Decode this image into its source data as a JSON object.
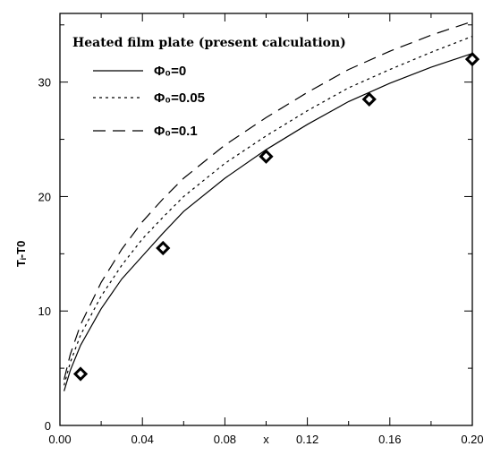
{
  "chart_data": {
    "type": "line",
    "title": "",
    "xlabel": "x",
    "ylabel": "Tᵢ-T0",
    "xlim": [
      0.0,
      0.2
    ],
    "ylim": [
      0,
      36
    ],
    "xticks": [
      "0.00",
      "0.04",
      "0.08",
      "0.12",
      "0.16",
      "0.20"
    ],
    "xtick_values": [
      0.0,
      0.04,
      0.08,
      0.12,
      0.16,
      0.2
    ],
    "yticks": [
      "0",
      "10",
      "20",
      "30"
    ],
    "ytick_values": [
      0,
      10,
      20,
      30
    ],
    "grid": false,
    "legend_title": "Heated film plate (present calculation)",
    "legend_position": "top-left",
    "series": [
      {
        "name": "Φ₀=0",
        "style": "solid",
        "x": [
          0.002,
          0.005,
          0.01,
          0.02,
          0.03,
          0.04,
          0.05,
          0.06,
          0.08,
          0.1,
          0.12,
          0.14,
          0.16,
          0.18,
          0.2
        ],
        "y": [
          3.0,
          4.8,
          7.0,
          10.2,
          12.8,
          14.8,
          16.8,
          18.7,
          21.6,
          24.1,
          26.3,
          28.3,
          29.9,
          31.3,
          32.5
        ]
      },
      {
        "name": "Φ₀=0.05",
        "style": "dotted",
        "x": [
          0.002,
          0.005,
          0.01,
          0.02,
          0.03,
          0.04,
          0.05,
          0.06,
          0.08,
          0.1,
          0.12,
          0.14,
          0.16,
          0.18,
          0.2
        ],
        "y": [
          3.5,
          5.5,
          7.9,
          11.3,
          14.0,
          16.3,
          18.2,
          20.0,
          22.9,
          25.3,
          27.5,
          29.5,
          31.1,
          32.6,
          34.0
        ]
      },
      {
        "name": "Φ₀=0.1",
        "style": "dashed",
        "x": [
          0.002,
          0.005,
          0.01,
          0.02,
          0.03,
          0.04,
          0.05,
          0.06,
          0.08,
          0.1,
          0.12,
          0.14,
          0.16,
          0.18,
          0.2
        ],
        "y": [
          4.0,
          6.2,
          8.8,
          12.5,
          15.4,
          17.8,
          19.8,
          21.6,
          24.5,
          26.9,
          29.1,
          31.1,
          32.7,
          34.1,
          35.3
        ]
      },
      {
        "name": "",
        "style": "markers",
        "marker": "diamond",
        "x": [
          0.01,
          0.05,
          0.1,
          0.15,
          0.2
        ],
        "y": [
          4.5,
          15.5,
          23.5,
          28.5,
          32.0
        ]
      }
    ]
  }
}
